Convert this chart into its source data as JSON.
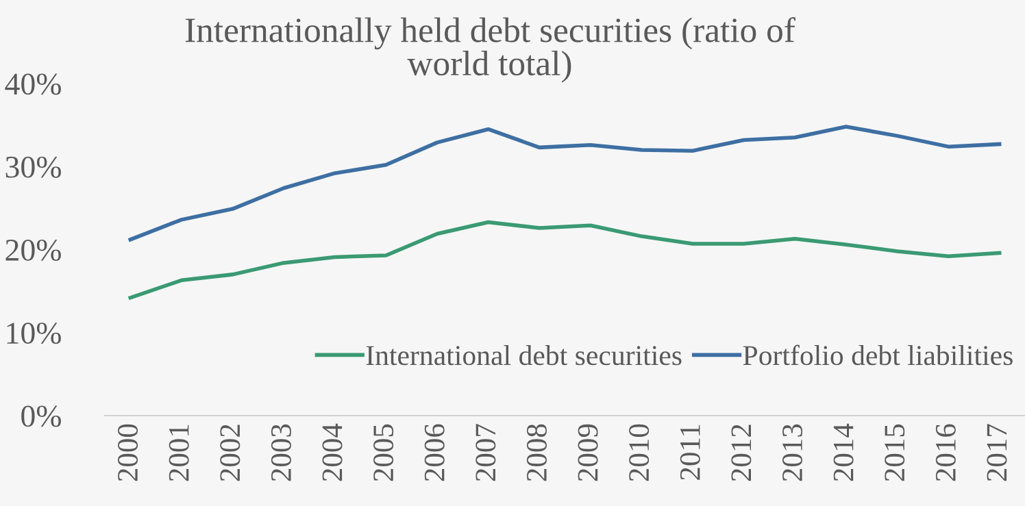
{
  "chart_data": {
    "type": "line",
    "title": "Internationally held debt securities (ratio of\nworld total)",
    "categories": [
      "2000",
      "2001",
      "2002",
      "2003",
      "2004",
      "2005",
      "2006",
      "2007",
      "2008",
      "2009",
      "2010",
      "2011",
      "2012",
      "2013",
      "2014",
      "2015",
      "2016",
      "2017"
    ],
    "series": [
      {
        "name": "International debt securities",
        "color": "#3a9a73",
        "values": [
          14.2,
          16.3,
          17.0,
          18.4,
          19.1,
          19.3,
          21.9,
          23.3,
          22.6,
          22.9,
          21.6,
          20.7,
          20.7,
          21.3,
          20.6,
          19.8,
          19.2,
          19.6
        ]
      },
      {
        "name": "Portfolio debt liabilities",
        "color": "#3e6fa3",
        "values": [
          21.2,
          23.6,
          24.9,
          27.4,
          29.2,
          30.2,
          32.9,
          34.5,
          32.3,
          32.6,
          32.0,
          31.9,
          33.2,
          33.5,
          34.8,
          33.7,
          32.4,
          32.7
        ]
      }
    ],
    "ylim": [
      0,
      40
    ],
    "yticks": [
      {
        "value": 0,
        "label": "0%"
      },
      {
        "value": 10,
        "label": "10%"
      },
      {
        "value": 20,
        "label": "20%"
      },
      {
        "value": 30,
        "label": "30%"
      },
      {
        "value": 40,
        "label": "40%"
      }
    ],
    "grid": false,
    "legend": "bottom right",
    "marker": "none",
    "line_style": "solid"
  }
}
